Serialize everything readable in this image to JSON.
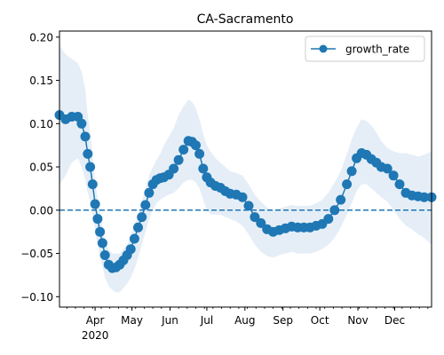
{
  "chart_data": {
    "type": "line",
    "title": "CA-Sacramento",
    "xlabel": "",
    "ylabel": "",
    "x_unit": "date",
    "xlim": [
      "2020-03-03",
      "2020-12-31"
    ],
    "ylim": [
      -0.112,
      0.207
    ],
    "x_ticks": [
      {
        "label": "Apr",
        "date": "2020-04-01",
        "sublabel": "2020"
      },
      {
        "label": "May",
        "date": "2020-05-01"
      },
      {
        "label": "Jun",
        "date": "2020-06-01"
      },
      {
        "label": "Jul",
        "date": "2020-07-01"
      },
      {
        "label": "Aug",
        "date": "2020-08-01"
      },
      {
        "label": "Sep",
        "date": "2020-09-01"
      },
      {
        "label": "Oct",
        "date": "2020-10-01"
      },
      {
        "label": "Nov",
        "date": "2020-11-01"
      },
      {
        "label": "Dec",
        "date": "2020-12-01"
      }
    ],
    "y_ticks": [
      "0.20",
      "0.15",
      "0.10",
      "0.05",
      "0.00",
      "−0.05",
      "−0.10"
    ],
    "y_tick_values": [
      0.2,
      0.15,
      0.1,
      0.05,
      0.0,
      -0.05,
      -0.1
    ],
    "reference_line": {
      "y": 0.0,
      "style": "dashed",
      "color": "#1f77b4"
    },
    "legend": {
      "placement": "top-right",
      "entries": [
        "growth_rate"
      ]
    },
    "grid": false,
    "colors": {
      "line": "#1f77b4",
      "band": "#dce8f4"
    },
    "series": [
      {
        "name": "growth_rate",
        "marker": "circle",
        "x": [
          "2020-03-03",
          "2020-03-08",
          "2020-03-13",
          "2020-03-18",
          "2020-03-21",
          "2020-03-24",
          "2020-03-26",
          "2020-03-28",
          "2020-03-30",
          "2020-04-01",
          "2020-04-03",
          "2020-04-05",
          "2020-04-07",
          "2020-04-09",
          "2020-04-12",
          "2020-04-15",
          "2020-04-18",
          "2020-04-21",
          "2020-04-24",
          "2020-04-27",
          "2020-04-30",
          "2020-05-03",
          "2020-05-06",
          "2020-05-09",
          "2020-05-12",
          "2020-05-15",
          "2020-05-18",
          "2020-05-21",
          "2020-05-24",
          "2020-05-27",
          "2020-05-31",
          "2020-06-04",
          "2020-06-08",
          "2020-06-12",
          "2020-06-16",
          "2020-06-19",
          "2020-06-22",
          "2020-06-25",
          "2020-06-28",
          "2020-07-01",
          "2020-07-04",
          "2020-07-08",
          "2020-07-12",
          "2020-07-16",
          "2020-07-20",
          "2020-07-25",
          "2020-07-30",
          "2020-08-04",
          "2020-08-09",
          "2020-08-14",
          "2020-08-19",
          "2020-08-24",
          "2020-08-29",
          "2020-09-03",
          "2020-09-08",
          "2020-09-13",
          "2020-09-18",
          "2020-09-23",
          "2020-09-28",
          "2020-10-03",
          "2020-10-08",
          "2020-10-13",
          "2020-10-18",
          "2020-10-23",
          "2020-10-27",
          "2020-10-31",
          "2020-11-04",
          "2020-11-08",
          "2020-11-12",
          "2020-11-16",
          "2020-11-20",
          "2020-11-25",
          "2020-11-30",
          "2020-12-05",
          "2020-12-10",
          "2020-12-15",
          "2020-12-20",
          "2020-12-25",
          "2020-12-31"
        ],
        "y": [
          0.11,
          0.105,
          0.108,
          0.108,
          0.1,
          0.085,
          0.065,
          0.05,
          0.03,
          0.007,
          -0.01,
          -0.025,
          -0.038,
          -0.052,
          -0.063,
          -0.067,
          -0.066,
          -0.063,
          -0.058,
          -0.052,
          -0.045,
          -0.033,
          -0.02,
          -0.008,
          0.006,
          0.02,
          0.03,
          0.035,
          0.037,
          0.038,
          0.041,
          0.048,
          0.058,
          0.07,
          0.08,
          0.079,
          0.075,
          0.065,
          0.048,
          0.038,
          0.032,
          0.028,
          0.026,
          0.022,
          0.019,
          0.018,
          0.015,
          0.005,
          -0.008,
          -0.015,
          -0.022,
          -0.025,
          -0.023,
          -0.021,
          -0.019,
          -0.02,
          -0.02,
          -0.02,
          -0.018,
          -0.016,
          -0.01,
          0.0,
          0.012,
          0.03,
          0.045,
          0.06,
          0.066,
          0.064,
          0.059,
          0.055,
          0.05,
          0.048,
          0.04,
          0.03,
          0.02,
          0.017,
          0.016,
          0.015,
          0.015
        ],
        "band_upper": [
          0.19,
          0.18,
          0.175,
          0.17,
          0.16,
          0.14,
          0.11,
          0.09,
          0.065,
          0.035,
          0.015,
          -0.002,
          -0.02,
          -0.035,
          -0.045,
          -0.05,
          -0.05,
          -0.05,
          -0.045,
          -0.04,
          -0.03,
          -0.018,
          -0.005,
          0.01,
          0.025,
          0.04,
          0.05,
          0.058,
          0.065,
          0.075,
          0.085,
          0.095,
          0.11,
          0.12,
          0.128,
          0.125,
          0.118,
          0.105,
          0.088,
          0.075,
          0.068,
          0.06,
          0.055,
          0.05,
          0.045,
          0.043,
          0.04,
          0.03,
          0.018,
          0.01,
          0.003,
          0.0,
          0.002,
          0.004,
          0.006,
          0.005,
          0.005,
          0.005,
          0.008,
          0.012,
          0.02,
          0.032,
          0.045,
          0.065,
          0.082,
          0.095,
          0.105,
          0.103,
          0.098,
          0.09,
          0.08,
          0.072,
          0.068,
          0.066,
          0.066,
          0.064,
          0.062,
          0.064,
          0.068
        ],
        "band_lower": [
          0.03,
          0.04,
          0.055,
          0.06,
          0.05,
          0.035,
          0.02,
          0.01,
          -0.005,
          -0.025,
          -0.04,
          -0.055,
          -0.065,
          -0.078,
          -0.088,
          -0.092,
          -0.095,
          -0.095,
          -0.09,
          -0.085,
          -0.078,
          -0.068,
          -0.055,
          -0.04,
          -0.025,
          -0.01,
          0.0,
          0.008,
          0.012,
          0.015,
          0.018,
          0.02,
          0.025,
          0.032,
          0.035,
          0.035,
          0.032,
          0.025,
          0.012,
          0.0,
          -0.005,
          -0.005,
          -0.005,
          -0.008,
          -0.01,
          -0.013,
          -0.018,
          -0.028,
          -0.04,
          -0.048,
          -0.053,
          -0.055,
          -0.052,
          -0.05,
          -0.048,
          -0.05,
          -0.05,
          -0.05,
          -0.048,
          -0.045,
          -0.04,
          -0.032,
          -0.02,
          -0.005,
          0.008,
          0.022,
          0.03,
          0.03,
          0.025,
          0.02,
          0.015,
          0.01,
          0.0,
          -0.01,
          -0.018,
          -0.022,
          -0.028,
          -0.032,
          -0.04
        ]
      }
    ]
  }
}
